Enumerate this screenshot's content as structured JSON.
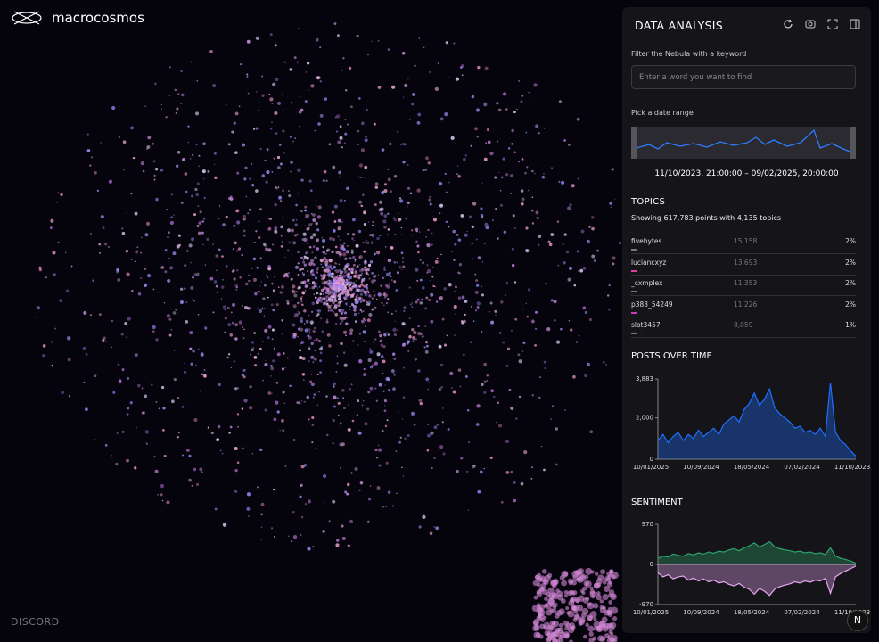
{
  "app": {
    "brand": "macrocosmos",
    "footer": "DISCORD",
    "corner_button": "N"
  },
  "panel": {
    "title": "DATA ANALYSIS",
    "filter_label": "Filter the Nebula with a keyword",
    "filter_placeholder": "Enter a word you want to find",
    "date_label": "Pick a date range",
    "date_range": "11/10/2023, 21:00:00 – 09/02/2025, 20:00:00",
    "topics": {
      "title": "TOPICS",
      "summary": "Showing 617,783 points with 4,135 topics",
      "rows": [
        {
          "name": "fivebytes",
          "count": "15,158",
          "share": "2%"
        },
        {
          "name": "luciancxyz",
          "count": "13,693",
          "share": "2%"
        },
        {
          "name": "_cxmplex",
          "count": "11,353",
          "share": "2%"
        },
        {
          "name": "p383_54249",
          "count": "11,226",
          "share": "2%"
        },
        {
          "name": "slot3457",
          "count": "8,059",
          "share": "1%"
        }
      ]
    }
  },
  "chart_data": [
    {
      "type": "area",
      "title": "POSTS OVER TIME",
      "xlabels": [
        "10/01/2025",
        "10/09/2024",
        "18/05/2024",
        "07/02/2024",
        "11/10/2023"
      ],
      "series": [
        {
          "name": "posts",
          "color": "#1f6fff",
          "values": [
            900,
            1200,
            800,
            1100,
            1300,
            900,
            1200,
            1000,
            1400,
            1100,
            1300,
            1500,
            1200,
            1700,
            1900,
            2100,
            1800,
            2400,
            2700,
            3200,
            2600,
            2900,
            3400,
            2500,
            2200,
            2000,
            1800,
            1500,
            1600,
            1300,
            1400,
            1200,
            1500,
            1100,
            3700,
            1300,
            900,
            700,
            400,
            150
          ]
        }
      ],
      "ylim": [
        0,
        3883
      ],
      "yticks": [
        0,
        {
          "value": 2000,
          "label": "2,000"
        },
        {
          "value": 3883,
          "label": "3,883"
        }
      ]
    },
    {
      "type": "diverging-area",
      "title": "SENTIMENT",
      "xlabels": [
        "10/01/2025",
        "10/09/2024",
        "18/05/2024",
        "07/02/2024",
        "11/10/2023"
      ],
      "series": [
        {
          "name": "positive",
          "color": "#2ea36b",
          "values": [
            150,
            200,
            180,
            250,
            220,
            200,
            260,
            230,
            280,
            250,
            300,
            270,
            320,
            300,
            350,
            380,
            330,
            400,
            450,
            520,
            420,
            480,
            550,
            430,
            380,
            350,
            330,
            300,
            320,
            280,
            300,
            260,
            280,
            240,
            400,
            200,
            150,
            120,
            80,
            30
          ]
        },
        {
          "name": "negative",
          "color": "#e8a6f0",
          "values": [
            -200,
            -300,
            -250,
            -350,
            -300,
            -280,
            -380,
            -330,
            -400,
            -350,
            -420,
            -380,
            -450,
            -420,
            -480,
            -520,
            -460,
            -550,
            -600,
            -720,
            -580,
            -650,
            -750,
            -600,
            -540,
            -500,
            -470,
            -420,
            -450,
            -400,
            -430,
            -380,
            -400,
            -340,
            -700,
            -300,
            -220,
            -160,
            -100,
            -40
          ]
        }
      ],
      "ylim": [
        -970,
        970
      ],
      "yticks": [
        970,
        0,
        -970
      ]
    }
  ]
}
